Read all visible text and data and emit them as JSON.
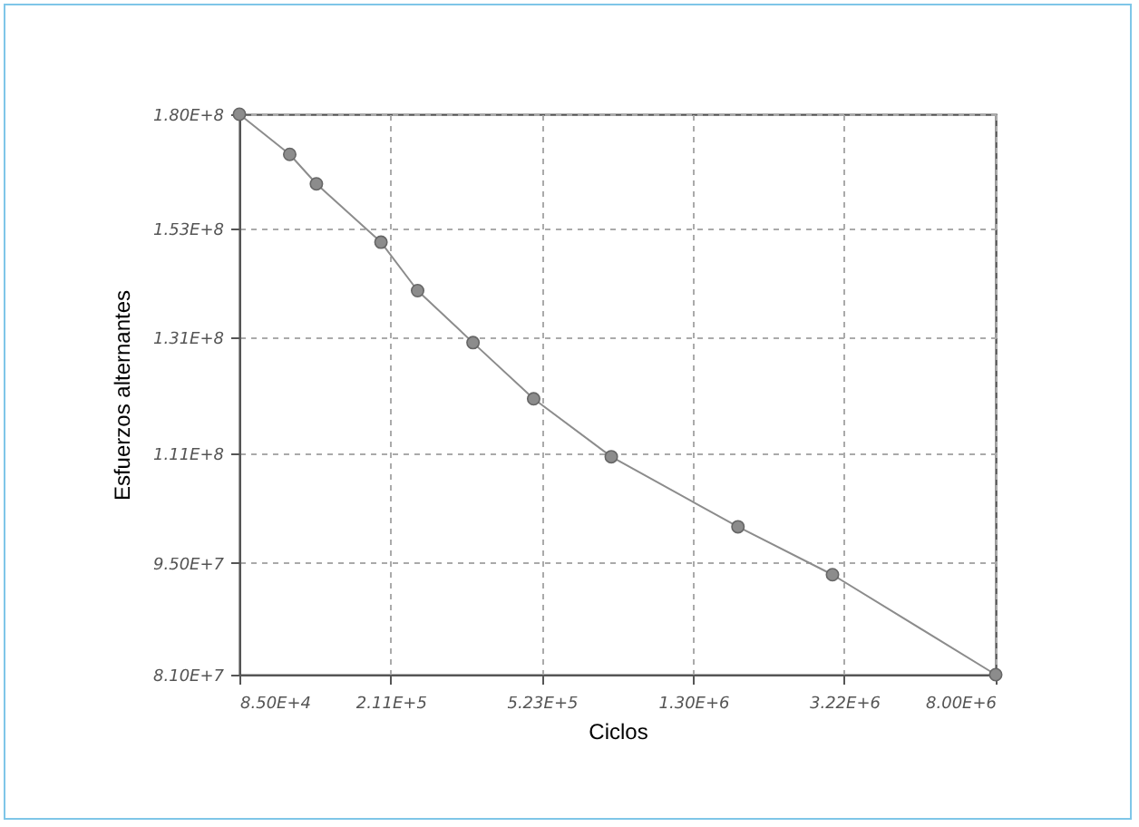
{
  "chart_data": {
    "type": "line",
    "xlabel": "Ciclos",
    "ylabel": "Esfuerzos alternantes",
    "x": [
      85000,
      115000,
      135000,
      199000,
      248000,
      346000,
      498000,
      794000,
      1700000,
      3000000,
      8000000
    ],
    "series": [
      {
        "color": "#8c8c8c",
        "values": [
          180000000,
          170000000,
          163000000,
          150000000,
          140000000,
          130000000,
          120000000,
          110500000,
          100000000,
          93400000,
          81000000
        ]
      }
    ],
    "log": "xy",
    "xlim": [
      85000,
      8000000
    ],
    "ylim": [
      81000000,
      180000000
    ],
    "xticks": [
      {
        "value": 85000,
        "label": "8.50E+4"
      },
      {
        "value": 211000,
        "label": "2.11E+5"
      },
      {
        "value": 523000,
        "label": "5.23E+5"
      },
      {
        "value": 1300000,
        "label": "1.30E+6"
      },
      {
        "value": 3220000,
        "label": "3.22E+6"
      },
      {
        "value": 8000000,
        "label": "8.00E+6"
      }
    ],
    "yticks": [
      {
        "value": 81000000,
        "label": "8.10E+7"
      },
      {
        "value": 95000000,
        "label": "9.50E+7"
      },
      {
        "value": 111000000,
        "label": "1.11E+8"
      },
      {
        "value": 131000000,
        "label": "1.31E+8"
      },
      {
        "value": 153000000,
        "label": "1.53E+8"
      },
      {
        "value": 180000000,
        "label": "1.80E+8"
      }
    ],
    "grid": true,
    "marker": "circle",
    "line_style": "solid"
  }
}
